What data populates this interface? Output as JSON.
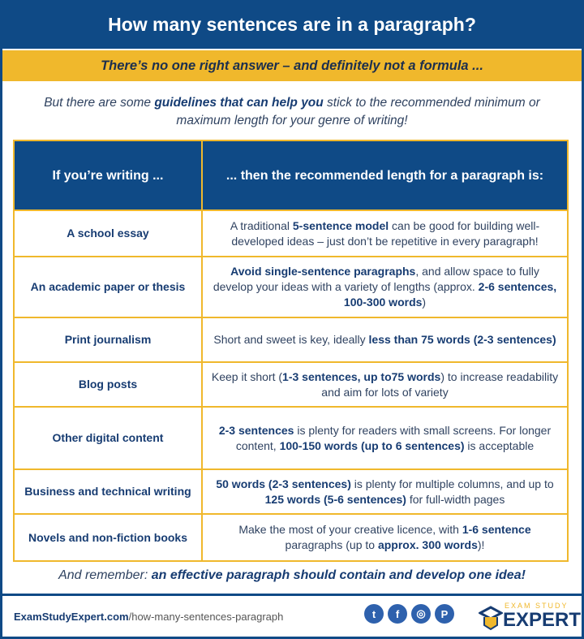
{
  "title": "How many sentences are in a paragraph?",
  "banner": "There’s no one right answer – and definitely not a formula ...",
  "intro": [
    {
      "t": "But there are some "
    },
    {
      "t": "guidelines that can help you",
      "b": true
    },
    {
      "t": " stick to the recommended minimum or maximum length for your genre of writing!"
    }
  ],
  "table": {
    "headers": [
      "If you’re writing ...",
      "... then the recommended length for a paragraph is:"
    ],
    "rows": [
      {
        "label": "A school essay",
        "text": [
          {
            "t": "A traditional "
          },
          {
            "t": "5-sentence model",
            "b": true
          },
          {
            "t": " can be good for building well-developed ideas – just don’t be repetitive in every paragraph!"
          }
        ]
      },
      {
        "label": "An academic paper or thesis",
        "text": [
          {
            "t": "Avoid single-sentence paragraphs",
            "b": true
          },
          {
            "t": ", and allow space to fully develop your ideas with a variety of lengths (approx. "
          },
          {
            "t": "2-6 sentences, 100-300 words",
            "b": true
          },
          {
            "t": ")"
          }
        ]
      },
      {
        "label": "Print journalism",
        "text": [
          {
            "t": "Short and sweet is key, ideally "
          },
          {
            "t": "less than 75 words (2-3 sentences)",
            "b": true
          }
        ]
      },
      {
        "label": "Blog posts",
        "text": [
          {
            "t": "Keep it short ("
          },
          {
            "t": "1-3 sentences, up to75 words",
            "b": true
          },
          {
            "t": ") to increase readability and aim for lots of variety"
          }
        ]
      },
      {
        "label": "Other digital content",
        "text": [
          {
            "t": "2-3 sentences",
            "b": true
          },
          {
            "t": " is plenty for readers with small screens. For longer content, "
          },
          {
            "t": "100-150 words (up to 6 sentences)",
            "b": true
          },
          {
            "t": " is acceptable"
          }
        ]
      },
      {
        "label": "Business and technical writing",
        "text": [
          {
            "t": "50 words (2-3 sentences)",
            "b": true
          },
          {
            "t": " is plenty for multiple columns, and up to "
          },
          {
            "t": "125 words (5-6 sentences)",
            "b": true
          },
          {
            "t": " for full-width pages"
          }
        ]
      },
      {
        "label": "Novels and non-fiction books",
        "text": [
          {
            "t": "Make the most of your creative licence, with "
          },
          {
            "t": "1-6 sentence",
            "b": true
          },
          {
            "t": " paragraphs (up to "
          },
          {
            "t": "approx. 300 words",
            "b": true
          },
          {
            "t": ")!"
          }
        ]
      }
    ]
  },
  "remember": [
    {
      "t": "And remember: "
    },
    {
      "t": "an effective paragraph should contain and develop one idea!",
      "b": true
    }
  ],
  "footer": {
    "domain": "ExamStudyExpert.com",
    "path": "/how-many-sentences-paragraph",
    "social": [
      {
        "icon": "twitter-icon",
        "glyph": "t"
      },
      {
        "icon": "facebook-icon",
        "glyph": "f"
      },
      {
        "icon": "instagram-icon",
        "glyph": "◎"
      },
      {
        "icon": "pinterest-icon",
        "glyph": "P"
      }
    ],
    "logo_top": "EXAM STUDY",
    "logo_main": "EXPERT"
  },
  "colors": {
    "navy": "#0f4a86",
    "gold": "#f0b82c"
  }
}
